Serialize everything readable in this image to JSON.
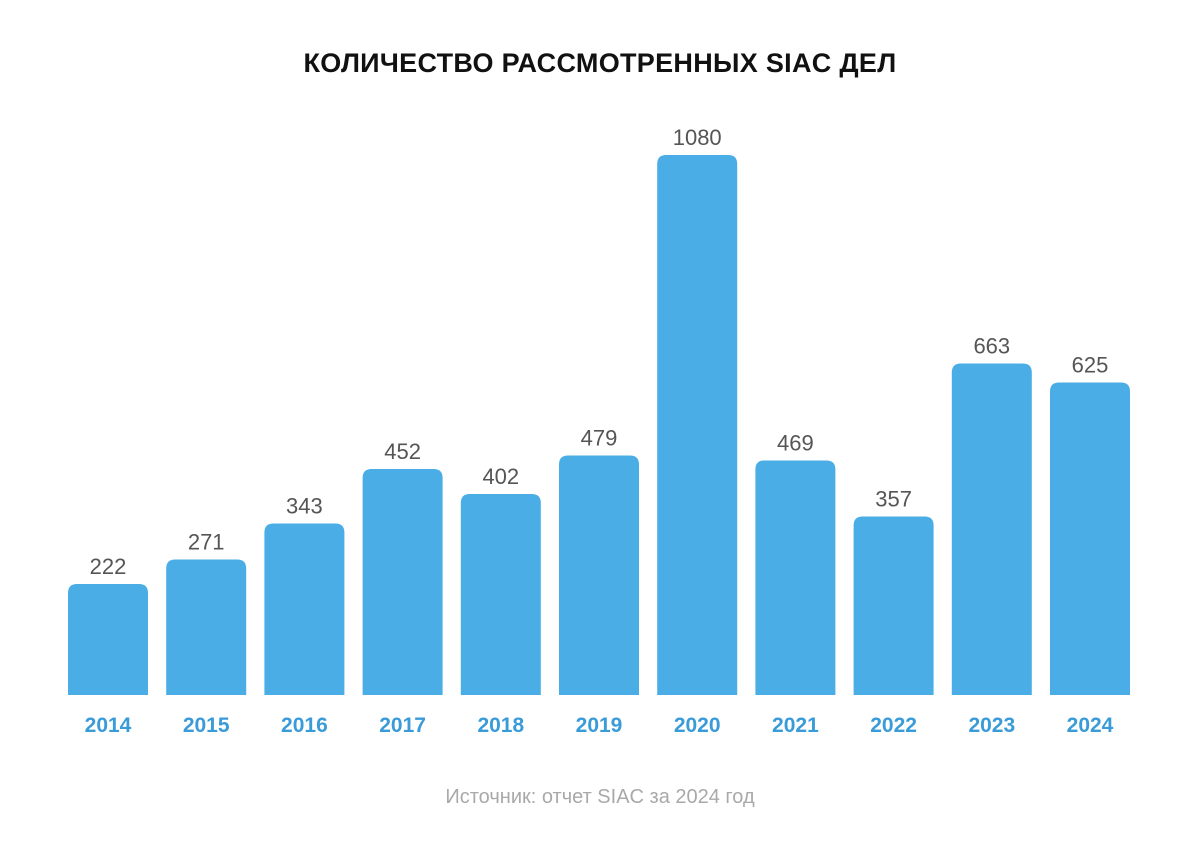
{
  "chart_data": {
    "type": "bar",
    "title": "КОЛИЧЕСТВО РАССМОТРЕННЫХ SIAC ДЕЛ",
    "categories": [
      "2014",
      "2015",
      "2016",
      "2017",
      "2018",
      "2019",
      "2020",
      "2021",
      "2022",
      "2023",
      "2024"
    ],
    "values": [
      222,
      271,
      343,
      452,
      402,
      479,
      1080,
      469,
      357,
      663,
      625
    ],
    "xlabel": "",
    "ylabel": "",
    "ylim": [
      0,
      1080
    ],
    "grid": false,
    "source": "Источник: отчет SIAC за 2024 год",
    "colors": {
      "bar": "#4AADE6",
      "category_label": "#3A9BD9",
      "value_label": "#555555"
    }
  }
}
